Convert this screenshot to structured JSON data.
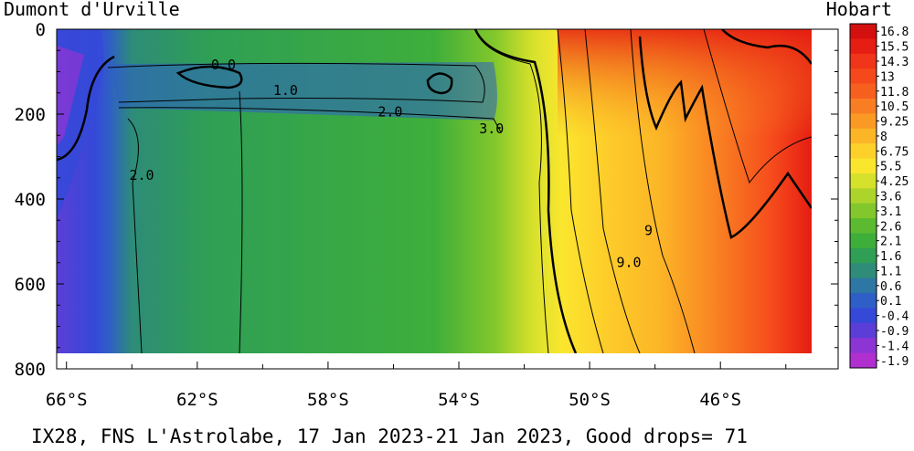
{
  "chart_data": {
    "type": "heatmap",
    "title": "IX28, FNS L'Astrolabe, 17 Jan 2023-21 Jan 2023, Good drops= 71",
    "left_station": "Dumont d'Urville",
    "right_station": "Hobart",
    "x_ticks": [
      "66°S",
      "62°S",
      "58°S",
      "54°S",
      "50°S",
      "46°S"
    ],
    "x_tick_values": [
      66,
      62,
      58,
      54,
      50,
      46
    ],
    "xlim": [
      66.3,
      42.4
    ],
    "y_ticks": [
      "0",
      "200",
      "400",
      "600",
      "800"
    ],
    "y_tick_values": [
      0,
      200,
      400,
      600,
      800
    ],
    "ylim": [
      0,
      800
    ],
    "data_x_range": [
      66.1,
      42.9
    ],
    "data_depth_max": 760,
    "colorbar_labels": [
      "16.8",
      "15.5",
      "14.3",
      "13",
      "11.8",
      "10.5",
      "9.25",
      "8",
      "6.75",
      "5.5",
      "4.25",
      "3.6",
      "3.1",
      "2.6",
      "2.1",
      "1.6",
      "1.1",
      "0.6",
      "0.1",
      "-0.4",
      "-0.9",
      "-1.4",
      "-1.9"
    ],
    "colorbar_colors": [
      "#d40f0f",
      "#e51d12",
      "#f0351a",
      "#f5491c",
      "#f75f1f",
      "#f97d22",
      "#fa9a24",
      "#fcb527",
      "#fdd02a",
      "#fbe62e",
      "#d6e12c",
      "#acd42a",
      "#82c72b",
      "#5cba31",
      "#3eae3b",
      "#2f9f55",
      "#2e8c78",
      "#2e76a3",
      "#2f5fc6",
      "#3549d8",
      "#5b3ed7",
      "#8d34d4",
      "#b02fcf"
    ],
    "contour_labels": [
      {
        "text": "0.0",
        "lat": 61.2,
        "depth": 95
      },
      {
        "text": "1.0",
        "lat": 59.3,
        "depth": 155
      },
      {
        "text": "2.0",
        "lat": 56.1,
        "depth": 205
      },
      {
        "text": "3.0",
        "lat": 53.0,
        "depth": 245
      },
      {
        "text": "2.0",
        "lat": 63.7,
        "depth": 355
      },
      {
        "text": "9.0",
        "lat": 48.8,
        "depth": 560
      },
      {
        "text": "9",
        "lat": 48.2,
        "depth": 485
      }
    ],
    "grid": false
  }
}
